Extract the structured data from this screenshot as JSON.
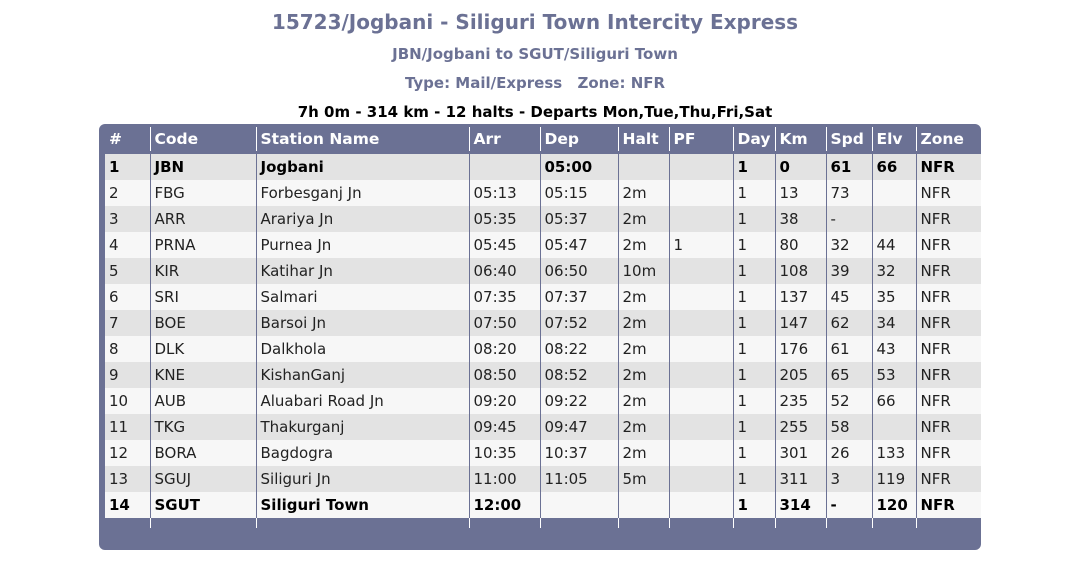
{
  "header": {
    "title": "15723/Jogbani - Siliguri Town Intercity Express",
    "route": "JBN/Jogbani to SGUT/Siliguri Town",
    "type": "Type: Mail/Express",
    "zone": "Zone: NFR",
    "summary": "7h 0m - 314 km - 12 halts - Departs Mon,Tue,Thu,Fri,Sat"
  },
  "table": {
    "columns": [
      "#",
      "Code",
      "Station Name",
      "Arr",
      "Dep",
      "Halt",
      "PF",
      "Day",
      "Km",
      "Spd",
      "Elv",
      "Zone"
    ],
    "rows": [
      {
        "num": "1",
        "code": "JBN",
        "name": "Jogbani",
        "arr": "",
        "dep": "05:00",
        "halt": "",
        "pf": "",
        "day": "1",
        "km": "0",
        "spd": "61",
        "elv": "66",
        "zone": "NFR",
        "bold": true
      },
      {
        "num": "2",
        "code": "FBG",
        "name": "Forbesganj Jn",
        "arr": "05:13",
        "dep": "05:15",
        "halt": "2m",
        "pf": "",
        "day": "1",
        "km": "13",
        "spd": "73",
        "elv": "",
        "zone": "NFR",
        "bold": false
      },
      {
        "num": "3",
        "code": "ARR",
        "name": "Arariya Jn",
        "arr": "05:35",
        "dep": "05:37",
        "halt": "2m",
        "pf": "",
        "day": "1",
        "km": "38",
        "spd": "-",
        "elv": "",
        "zone": "NFR",
        "bold": false
      },
      {
        "num": "4",
        "code": "PRNA",
        "name": "Purnea Jn",
        "arr": "05:45",
        "dep": "05:47",
        "halt": "2m",
        "pf": "1",
        "day": "1",
        "km": "80",
        "spd": "32",
        "elv": "44",
        "zone": "NFR",
        "bold": false
      },
      {
        "num": "5",
        "code": "KIR",
        "name": "Katihar Jn",
        "arr": "06:40",
        "dep": "06:50",
        "halt": "10m",
        "pf": "",
        "day": "1",
        "km": "108",
        "spd": "39",
        "elv": "32",
        "zone": "NFR",
        "bold": false
      },
      {
        "num": "6",
        "code": "SRI",
        "name": "Salmari",
        "arr": "07:35",
        "dep": "07:37",
        "halt": "2m",
        "pf": "",
        "day": "1",
        "km": "137",
        "spd": "45",
        "elv": "35",
        "zone": "NFR",
        "bold": false
      },
      {
        "num": "7",
        "code": "BOE",
        "name": "Barsoi Jn",
        "arr": "07:50",
        "dep": "07:52",
        "halt": "2m",
        "pf": "",
        "day": "1",
        "km": "147",
        "spd": "62",
        "elv": "34",
        "zone": "NFR",
        "bold": false
      },
      {
        "num": "8",
        "code": "DLK",
        "name": "Dalkhola",
        "arr": "08:20",
        "dep": "08:22",
        "halt": "2m",
        "pf": "",
        "day": "1",
        "km": "176",
        "spd": "61",
        "elv": "43",
        "zone": "NFR",
        "bold": false
      },
      {
        "num": "9",
        "code": "KNE",
        "name": "KishanGanj",
        "arr": "08:50",
        "dep": "08:52",
        "halt": "2m",
        "pf": "",
        "day": "1",
        "km": "205",
        "spd": "65",
        "elv": "53",
        "zone": "NFR",
        "bold": false
      },
      {
        "num": "10",
        "code": "AUB",
        "name": "Aluabari Road Jn",
        "arr": "09:20",
        "dep": "09:22",
        "halt": "2m",
        "pf": "",
        "day": "1",
        "km": "235",
        "spd": "52",
        "elv": "66",
        "zone": "NFR",
        "bold": false
      },
      {
        "num": "11",
        "code": "TKG",
        "name": "Thakurganj",
        "arr": "09:45",
        "dep": "09:47",
        "halt": "2m",
        "pf": "",
        "day": "1",
        "km": "255",
        "spd": "58",
        "elv": "",
        "zone": "NFR",
        "bold": false
      },
      {
        "num": "12",
        "code": "BORA",
        "name": "Bagdogra",
        "arr": "10:35",
        "dep": "10:37",
        "halt": "2m",
        "pf": "",
        "day": "1",
        "km": "301",
        "spd": "26",
        "elv": "133",
        "zone": "NFR",
        "bold": false
      },
      {
        "num": "13",
        "code": "SGUJ",
        "name": "Siliguri Jn",
        "arr": "11:00",
        "dep": "11:05",
        "halt": "5m",
        "pf": "",
        "day": "1",
        "km": "311",
        "spd": "3",
        "elv": "119",
        "zone": "NFR",
        "bold": false
      },
      {
        "num": "14",
        "code": "SGUT",
        "name": "Siliguri Town",
        "arr": "12:00",
        "dep": "",
        "halt": "",
        "pf": "",
        "day": "1",
        "km": "314",
        "spd": "-",
        "elv": "120",
        "zone": "NFR",
        "bold": true
      }
    ]
  },
  "colors": {
    "header_bg": "#6b7194",
    "title_text": "#6b7194",
    "row_odd": "#e3e3e3",
    "row_even": "#f7f7f7"
  }
}
